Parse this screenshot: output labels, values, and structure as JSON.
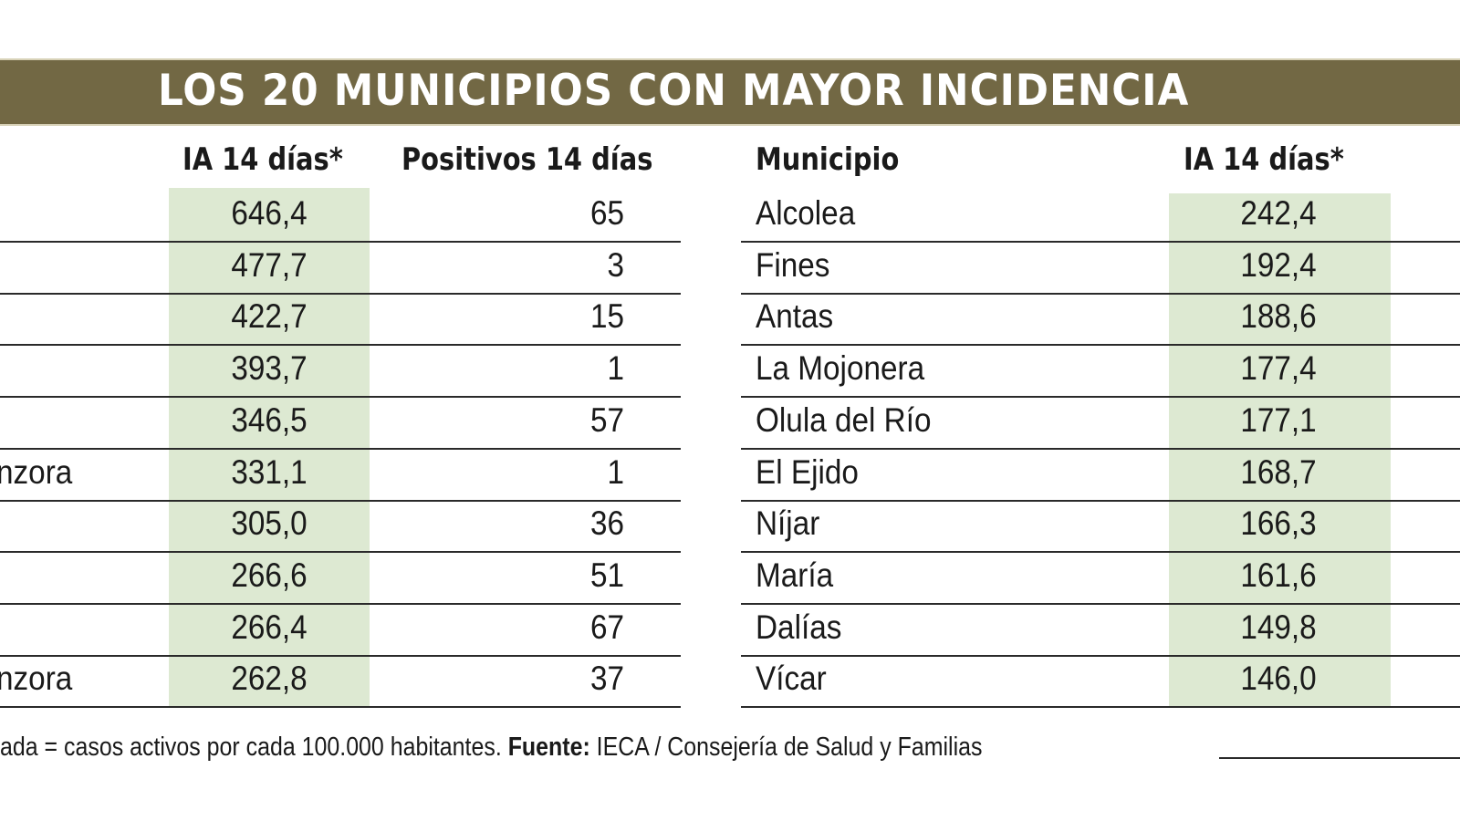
{
  "title": "LOS 20 MUNICIPIOS CON MAYOR INCIDENCIA",
  "colors": {
    "banner": "#726844",
    "highlight": "#dde9d2"
  },
  "chart_data": {
    "type": "table",
    "title": "LOS 20 MUNICIPIOS CON MAYOR INCIDENCIA",
    "tables": [
      {
        "columns": [
          "",
          "IA 14 días*",
          "Positivos 14 días"
        ],
        "rows": [
          [
            "",
            "646,4",
            "65"
          ],
          [
            "",
            "477,7",
            "3"
          ],
          [
            "",
            "422,7",
            "15"
          ],
          [
            "",
            "393,7",
            "1"
          ],
          [
            "",
            "346,5",
            "57"
          ],
          [
            "nzora",
            "331,1",
            "1"
          ],
          [
            "",
            "305,0",
            "36"
          ],
          [
            "",
            "266,6",
            "51"
          ],
          [
            "",
            "266,4",
            "67"
          ],
          [
            "nzora",
            "262,8",
            "37"
          ]
        ]
      },
      {
        "columns": [
          "Municipio",
          "IA 14 días*"
        ],
        "rows": [
          [
            "Alcolea",
            "242,4"
          ],
          [
            "Fines",
            "192,4"
          ],
          [
            "Antas",
            "188,6"
          ],
          [
            "La Mojonera",
            "177,4"
          ],
          [
            "Olula del Río",
            "177,1"
          ],
          [
            "El Ejido",
            "168,7"
          ],
          [
            "Níjar",
            "166,3"
          ],
          [
            "María",
            "161,6"
          ],
          [
            "Dalías",
            "149,8"
          ],
          [
            "Vícar",
            "146,0"
          ]
        ]
      }
    ]
  },
  "footnote": {
    "text": "ada = casos activos por cada 100.000 habitantes. ",
    "source_label": "Fuente:",
    "source": " IECA / Consejería de Salud y Familias"
  }
}
